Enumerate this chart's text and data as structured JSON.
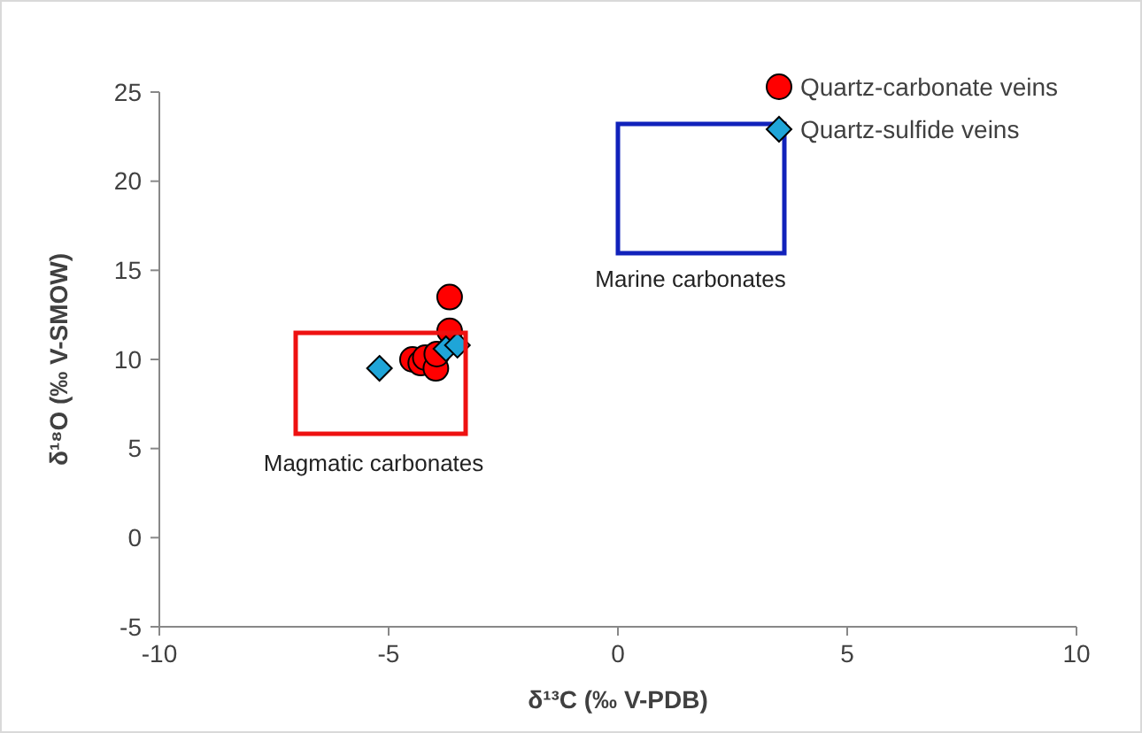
{
  "chart_data": {
    "type": "scatter",
    "xlabel": "δ¹³C (‰ V-PDB)",
    "ylabel": "δ¹⁸O (‰ V-SMOW)",
    "xlim": [
      -10,
      10
    ],
    "ylim": [
      -5,
      25
    ],
    "xticks": [
      -10,
      -5,
      0,
      5,
      10
    ],
    "yticks": [
      -5,
      0,
      5,
      10,
      15,
      20,
      25
    ],
    "grid": false,
    "legend": "top right",
    "series": [
      {
        "name": "Quartz-carbonate veins",
        "color": "#ff0000",
        "marker": "circle",
        "x": [
          -3.67,
          -3.67,
          -4.48,
          -4.3,
          -4.2,
          -3.97,
          -3.95
        ],
        "values": [
          13.5,
          11.6,
          10.0,
          9.8,
          10.1,
          9.5,
          10.3
        ]
      },
      {
        "name": "Quartz-sulfide veins",
        "color": "#1fa5d8",
        "marker": "diamond",
        "x": [
          -5.2,
          -3.75,
          -3.5
        ],
        "values": [
          9.5,
          10.6,
          10.8
        ]
      }
    ],
    "annotations": [
      "Marine carbonates",
      "Magmatic carbonates"
    ]
  }
}
